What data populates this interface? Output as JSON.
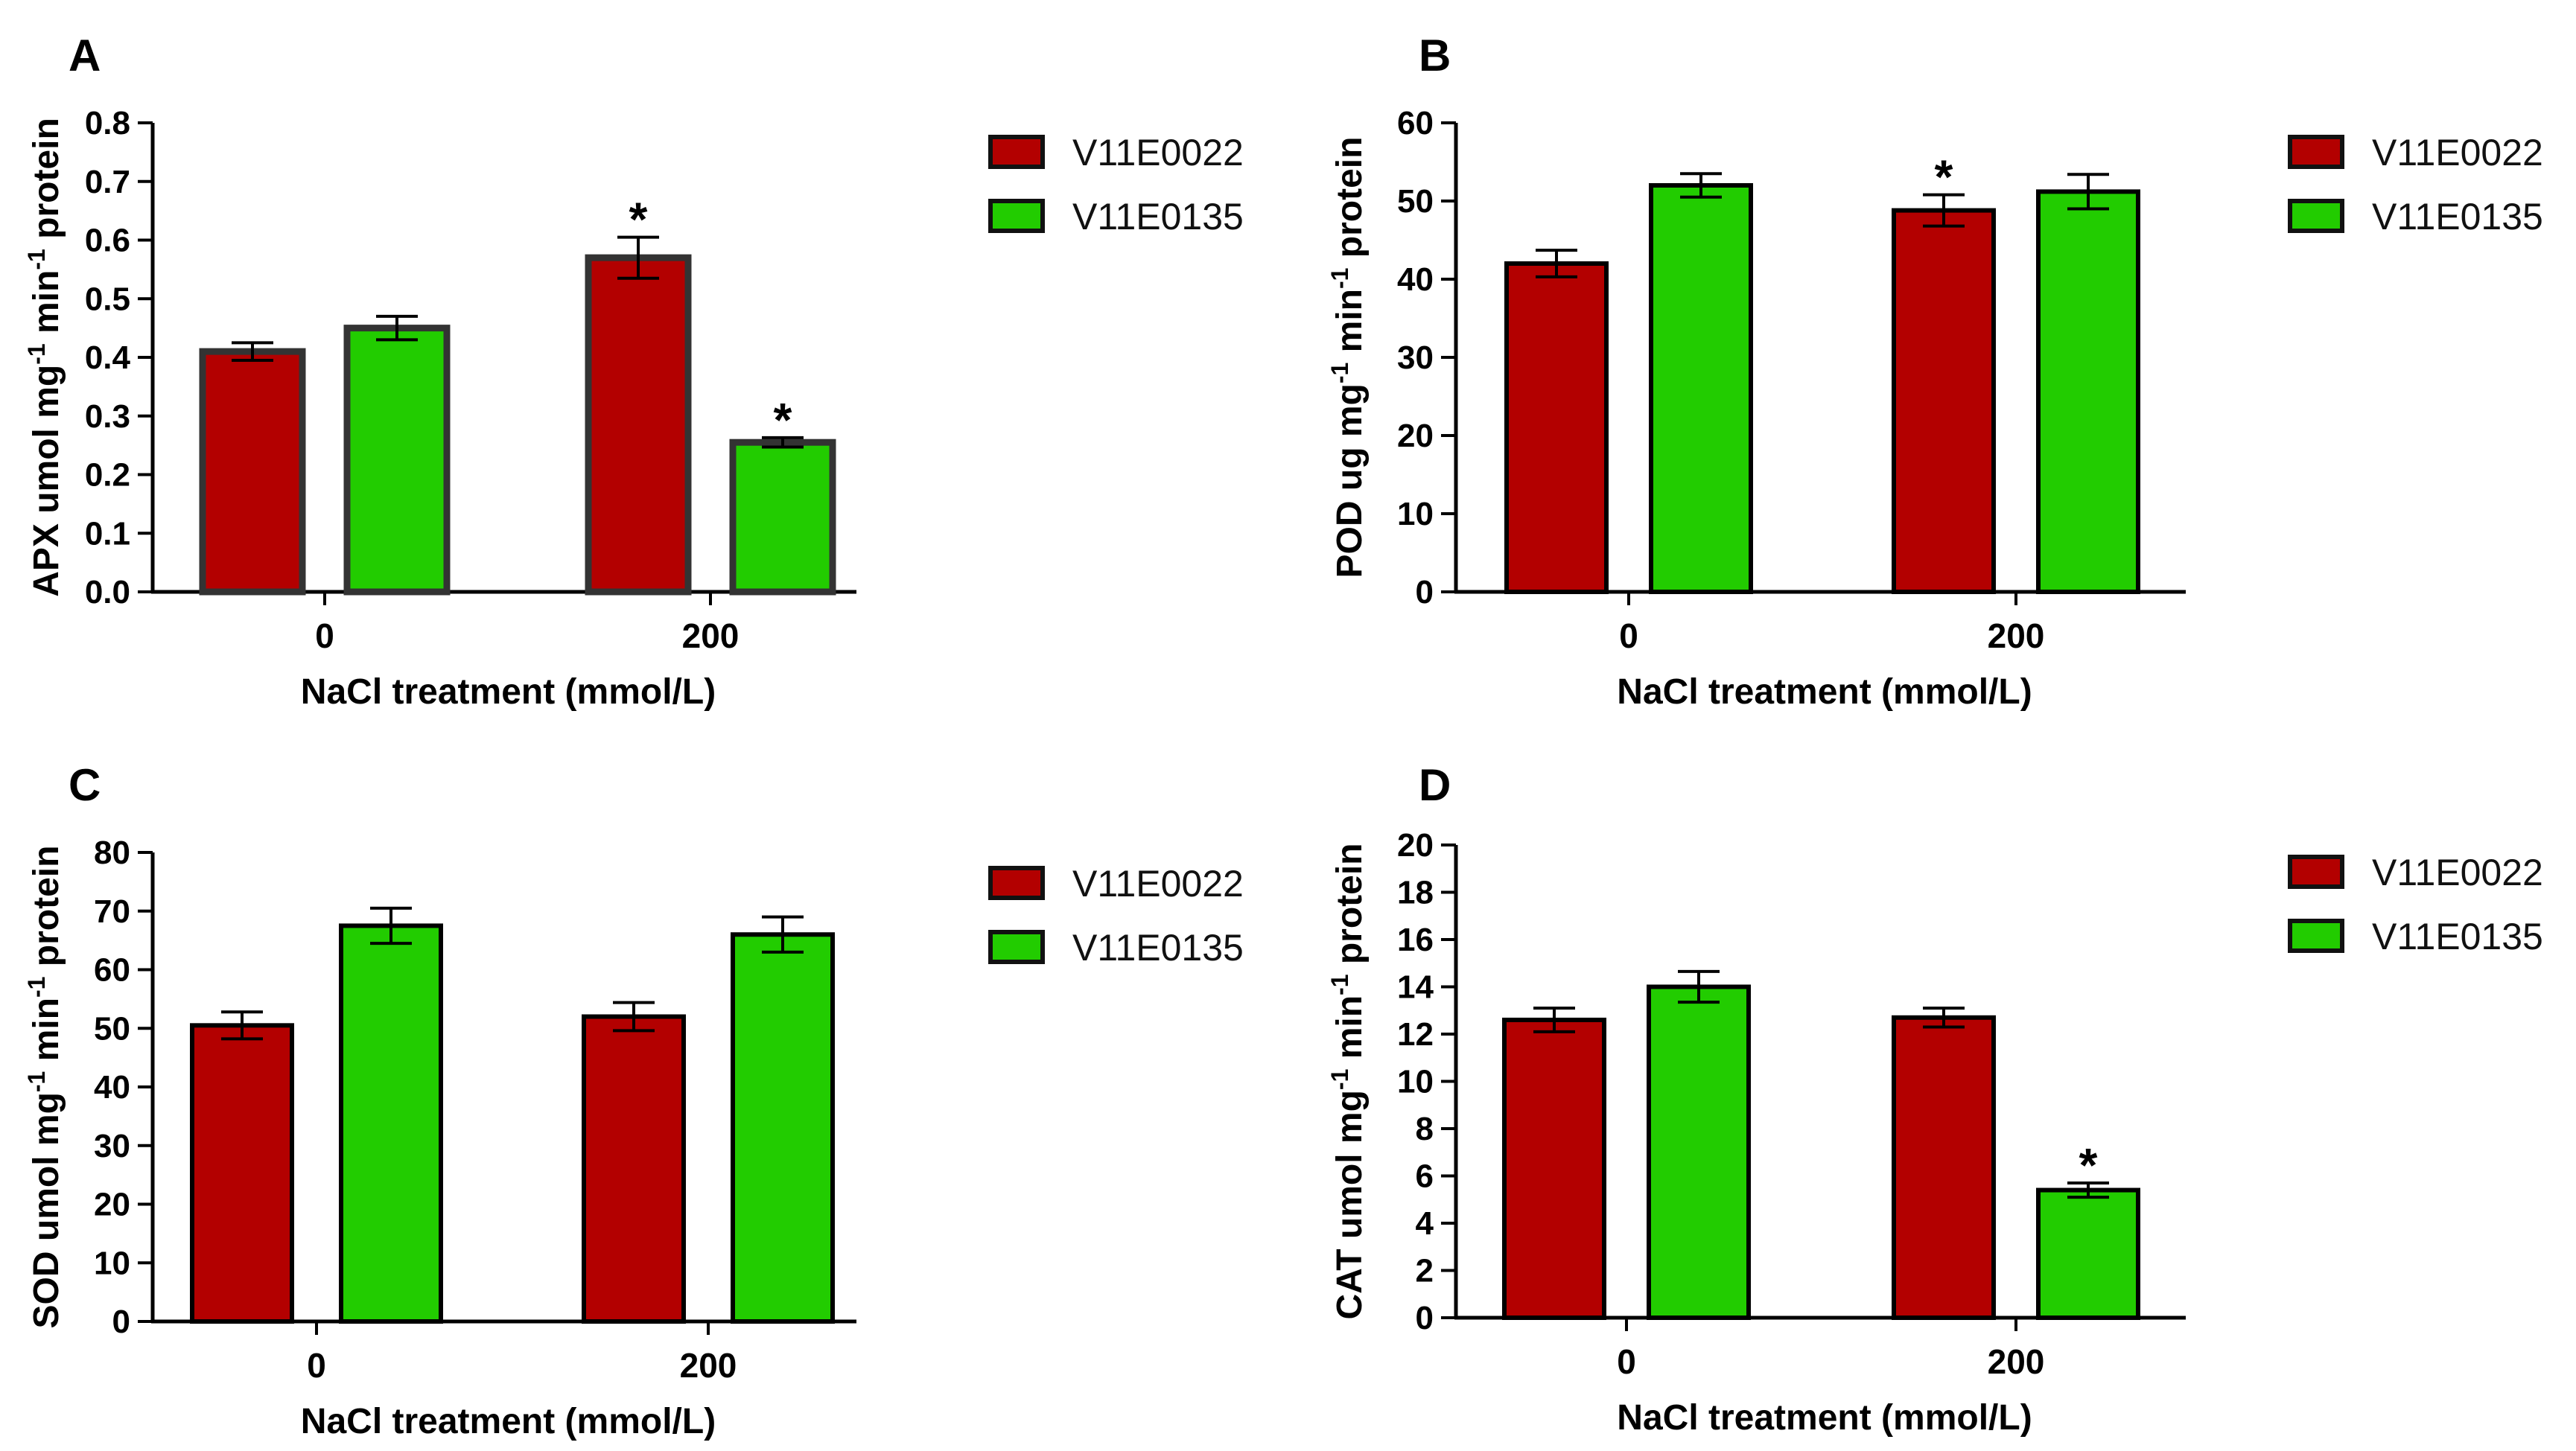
{
  "legend": {
    "items": [
      {
        "label": "V11E0022",
        "color": "#b30000"
      },
      {
        "label": "V11E0135",
        "color": "#22cc00"
      }
    ]
  },
  "chart_data": [
    {
      "type": "bar",
      "panel": "A",
      "xlabel": "NaCl treatment (mmol/L)",
      "ylabel": {
        "prefix": "APX umol mg",
        "sup1": "-1",
        "mid": " min",
        "sup2": "-1",
        "suffix": " protein"
      },
      "ylim": [
        0,
        0.8
      ],
      "yticks": [
        "0.0",
        "0.1",
        "0.2",
        "0.3",
        "0.4",
        "0.5",
        "0.6",
        "0.7",
        "0.8"
      ],
      "categories": [
        "0",
        "200"
      ],
      "series": [
        {
          "name": "V11E0022",
          "values": [
            0.41,
            0.57
          ],
          "errors": [
            0.015,
            0.035
          ],
          "significant": [
            "",
            "*"
          ]
        },
        {
          "name": "V11E0135",
          "values": [
            0.45,
            0.255
          ],
          "errors": [
            0.02,
            0.008
          ],
          "significant": [
            "",
            "*"
          ]
        }
      ]
    },
    {
      "type": "bar",
      "panel": "B",
      "xlabel": "NaCl treatment (mmol/L)",
      "ylabel": {
        "prefix": "POD ug mg",
        "sup1": "-1",
        "mid": " min",
        "sup2": "-1",
        "suffix": " protein"
      },
      "ylim": [
        0,
        60
      ],
      "yticks": [
        "0",
        "10",
        "20",
        "30",
        "40",
        "50",
        "60"
      ],
      "categories": [
        "0",
        "200"
      ],
      "series": [
        {
          "name": "V11E0022",
          "values": [
            42,
            48.8
          ],
          "errors": [
            1.7,
            2.0
          ],
          "significant": [
            "",
            "*"
          ]
        },
        {
          "name": "V11E0135",
          "values": [
            52,
            51.2
          ],
          "errors": [
            1.5,
            2.2
          ],
          "significant": [
            "",
            ""
          ]
        }
      ]
    },
    {
      "type": "bar",
      "panel": "C",
      "xlabel": "NaCl treatment (mmol/L)",
      "ylabel": {
        "prefix": "SOD umol mg",
        "sup1": "-1",
        "mid": " min",
        "sup2": "-1",
        "suffix": " protein"
      },
      "ylim": [
        0,
        80
      ],
      "yticks": [
        "0",
        "10",
        "20",
        "30",
        "40",
        "50",
        "60",
        "70",
        "80"
      ],
      "categories": [
        "0",
        "200"
      ],
      "series": [
        {
          "name": "V11E0022",
          "values": [
            50.5,
            52
          ],
          "errors": [
            2.3,
            2.4
          ],
          "significant": [
            "",
            ""
          ]
        },
        {
          "name": "V11E0135",
          "values": [
            67.5,
            66
          ],
          "errors": [
            3.0,
            3.0
          ],
          "significant": [
            "",
            ""
          ]
        }
      ]
    },
    {
      "type": "bar",
      "panel": "D",
      "xlabel": "NaCl treatment (mmol/L)",
      "ylabel": {
        "prefix": "CAT umol mg",
        "sup1": "-1",
        "mid": " min",
        "sup2": "-1",
        "suffix": " protein"
      },
      "ylim": [
        0,
        20
      ],
      "yticks": [
        "0",
        "2",
        "4",
        "6",
        "8",
        "10",
        "12",
        "14",
        "16",
        "18",
        "20"
      ],
      "categories": [
        "0",
        "200"
      ],
      "series": [
        {
          "name": "V11E0022",
          "values": [
            12.6,
            12.7
          ],
          "errors": [
            0.5,
            0.4
          ],
          "significant": [
            "",
            ""
          ]
        },
        {
          "name": "V11E0135",
          "values": [
            14.0,
            5.4
          ],
          "errors": [
            0.65,
            0.3
          ],
          "significant": [
            "",
            "*"
          ]
        }
      ]
    }
  ]
}
